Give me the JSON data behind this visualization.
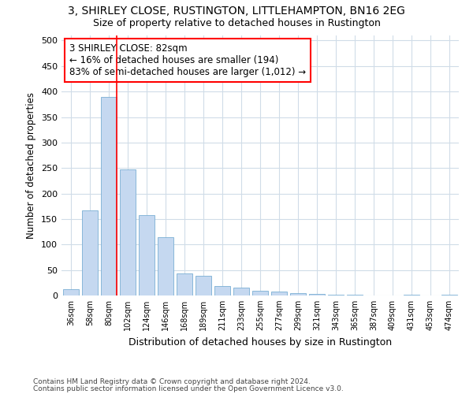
{
  "title1": "3, SHIRLEY CLOSE, RUSTINGTON, LITTLEHAMPTON, BN16 2EG",
  "title2": "Size of property relative to detached houses in Rustington",
  "xlabel": "Distribution of detached houses by size in Rustington",
  "ylabel": "Number of detached properties",
  "categories": [
    "36sqm",
    "58sqm",
    "80sqm",
    "102sqm",
    "124sqm",
    "146sqm",
    "168sqm",
    "189sqm",
    "211sqm",
    "233sqm",
    "255sqm",
    "277sqm",
    "299sqm",
    "321sqm",
    "343sqm",
    "365sqm",
    "387sqm",
    "409sqm",
    "431sqm",
    "453sqm",
    "474sqm"
  ],
  "values": [
    12,
    167,
    390,
    248,
    158,
    115,
    44,
    39,
    19,
    15,
    9,
    7,
    5,
    3,
    2,
    1,
    0,
    0,
    2,
    0,
    2
  ],
  "bar_color": "#c5d8f0",
  "bar_edge_color": "#7aafd4",
  "vline_color": "red",
  "annotation_line1": "3 SHIRLEY CLOSE: 82sqm",
  "annotation_line2": "← 16% of detached houses are smaller (194)",
  "annotation_line3": "83% of semi-detached houses are larger (1,012) →",
  "annotation_box_color": "white",
  "annotation_box_edge_color": "red",
  "footer1": "Contains HM Land Registry data © Crown copyright and database right 2024.",
  "footer2": "Contains public sector information licensed under the Open Government Licence v3.0.",
  "ylim": [
    0,
    510
  ],
  "yticks": [
    0,
    50,
    100,
    150,
    200,
    250,
    300,
    350,
    400,
    450,
    500
  ],
  "background_color": "#ffffff",
  "grid_color": "#d0dce8"
}
